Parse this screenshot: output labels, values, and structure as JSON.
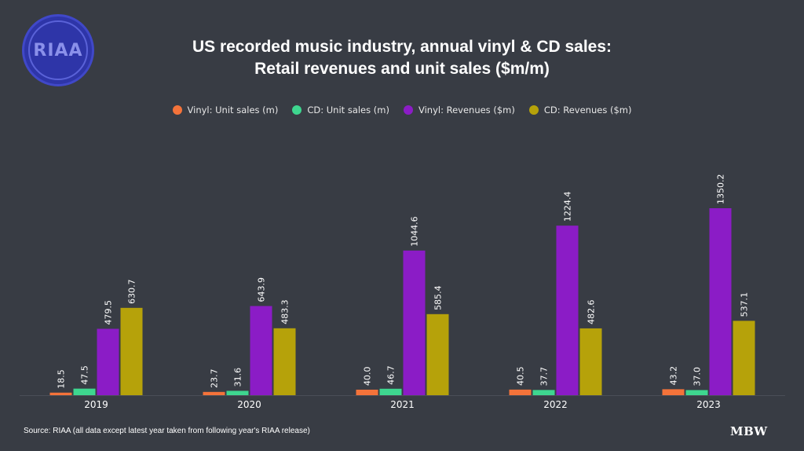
{
  "logo_text": "RIAA",
  "brand": "MBW",
  "source": "Source: RIAA (all data except latest year taken from following year's RIAA release)",
  "chart_data": {
    "type": "bar",
    "title_line1": "US recorded music industry, annual vinyl & CD sales:",
    "title_line2": "Retail revenues and unit sales ($m/m)",
    "categories": [
      "2019",
      "2020",
      "2021",
      "2022",
      "2023"
    ],
    "series": [
      {
        "name": "Vinyl: Unit sales (m)",
        "color": "#f4733a",
        "values": [
          18.5,
          23.7,
          40.0,
          40.5,
          43.2
        ]
      },
      {
        "name": "CD: Unit sales (m)",
        "color": "#3ed68f",
        "values": [
          47.5,
          31.6,
          46.7,
          37.7,
          37.0
        ]
      },
      {
        "name": "Vinyl: Revenues ($m)",
        "color": "#8b1cc6",
        "values": [
          479.5,
          643.9,
          1044.6,
          1224.4,
          1350.2
        ]
      },
      {
        "name": "CD: Revenues ($m)",
        "color": "#b6a20a",
        "values": [
          630.7,
          483.3,
          585.4,
          482.6,
          537.1
        ]
      }
    ],
    "ylim": [
      0,
      1350.2
    ],
    "legend_position": "top-center",
    "grid": false
  }
}
